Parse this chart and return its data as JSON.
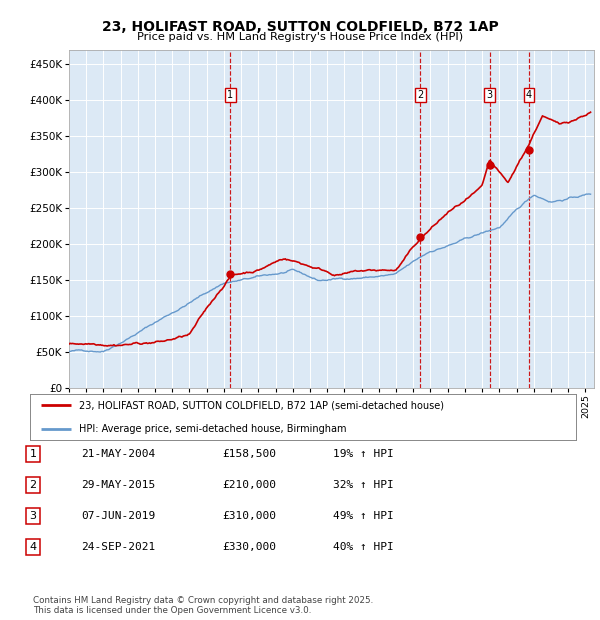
{
  "title": "23, HOLIFAST ROAD, SUTTON COLDFIELD, B72 1AP",
  "subtitle": "Price paid vs. HM Land Registry's House Price Index (HPI)",
  "plot_bg_color": "#dce9f5",
  "yticks": [
    0,
    50000,
    100000,
    150000,
    200000,
    250000,
    300000,
    350000,
    400000,
    450000
  ],
  "ytick_labels": [
    "£0",
    "£50K",
    "£100K",
    "£150K",
    "£200K",
    "£250K",
    "£300K",
    "£350K",
    "£400K",
    "£450K"
  ],
  "xmin": 1995,
  "xmax": 2025.5,
  "ymin": 0,
  "ymax": 470000,
  "sale_markers": [
    {
      "num": 1,
      "year": 2004.38,
      "price": 158500
    },
    {
      "num": 2,
      "year": 2015.41,
      "price": 210000
    },
    {
      "num": 3,
      "year": 2019.43,
      "price": 310000
    },
    {
      "num": 4,
      "year": 2021.73,
      "price": 330000
    }
  ],
  "table_entries": [
    {
      "num": 1,
      "date": "21-MAY-2004",
      "price": "£158,500",
      "hpi": "19% ↑ HPI"
    },
    {
      "num": 2,
      "date": "29-MAY-2015",
      "price": "£210,000",
      "hpi": "32% ↑ HPI"
    },
    {
      "num": 3,
      "date": "07-JUN-2019",
      "price": "£310,000",
      "hpi": "49% ↑ HPI"
    },
    {
      "num": 4,
      "date": "24-SEP-2021",
      "price": "£330,000",
      "hpi": "40% ↑ HPI"
    }
  ],
  "legend_entries": [
    "23, HOLIFAST ROAD, SUTTON COLDFIELD, B72 1AP (semi-detached house)",
    "HPI: Average price, semi-detached house, Birmingham"
  ],
  "footer": "Contains HM Land Registry data © Crown copyright and database right 2025.\nThis data is licensed under the Open Government Licence v3.0.",
  "red_line_color": "#cc0000",
  "blue_line_color": "#6699cc",
  "marker_box_color": "#cc0000",
  "dashed_line_color": "#cc0000"
}
